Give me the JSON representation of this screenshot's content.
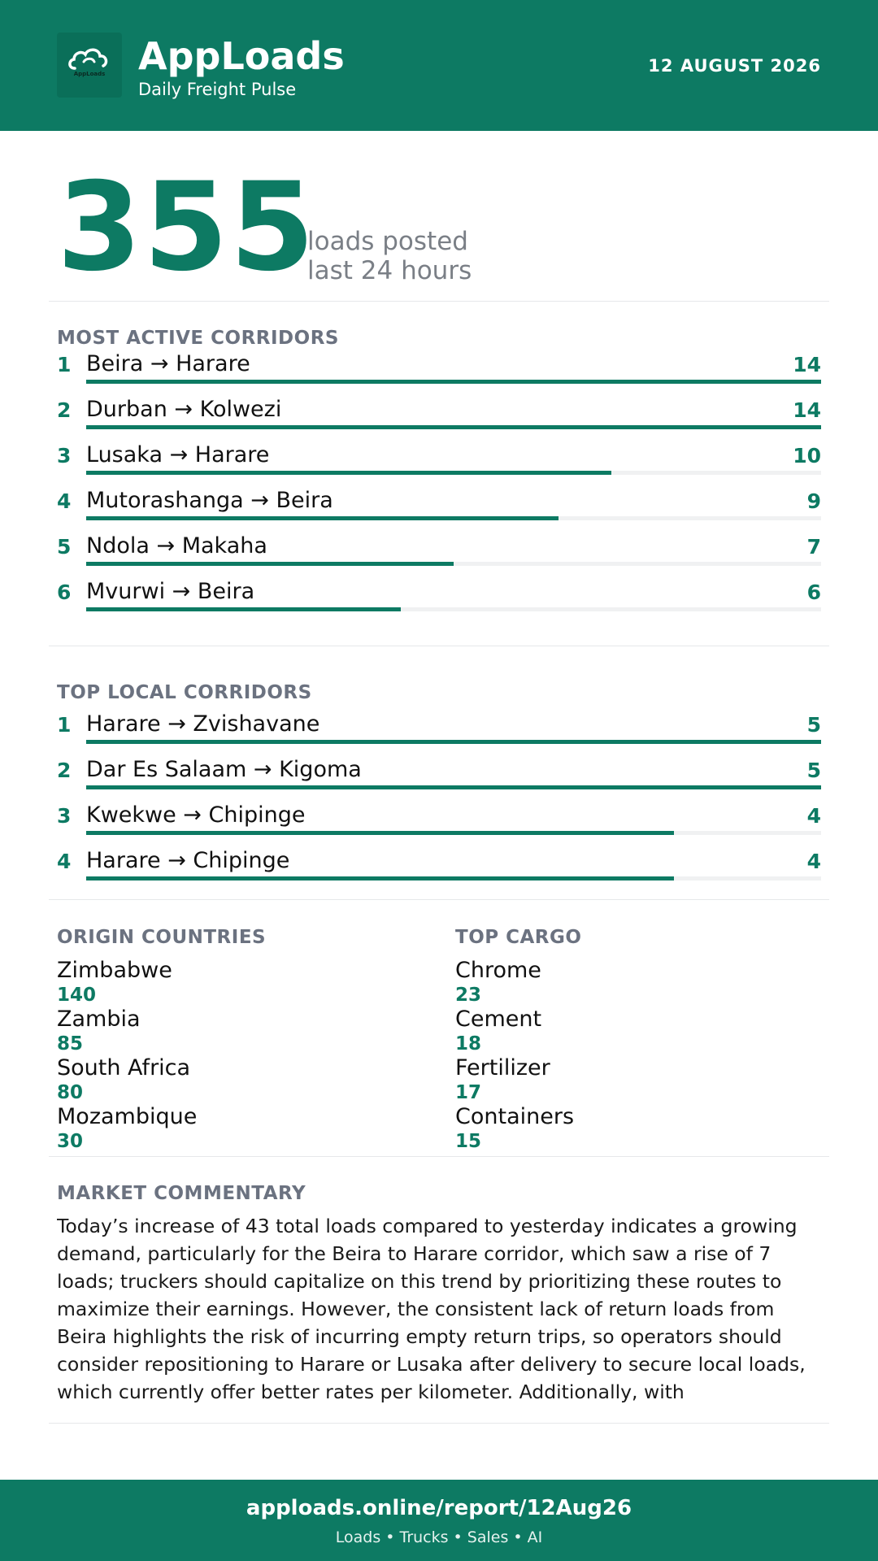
{
  "header": {
    "brand_name": "AppLoads",
    "tagline": "Daily Freight Pulse",
    "date": "12 AUGUST 2026",
    "logo_icon": "cloud-icon",
    "logo_text": "AppLoads"
  },
  "hero": {
    "value": "355",
    "line1": "loads posted",
    "line2": "last 24 hours"
  },
  "most_active": {
    "title": "MOST ACTIVE CORRIDORS",
    "max": 14,
    "items": [
      {
        "rank": "1",
        "route": "Beira → Harare",
        "count": 14
      },
      {
        "rank": "2",
        "route": "Durban → Kolwezi",
        "count": 14
      },
      {
        "rank": "3",
        "route": "Lusaka → Harare",
        "count": 10
      },
      {
        "rank": "4",
        "route": "Mutorashanga → Beira",
        "count": 9
      },
      {
        "rank": "5",
        "route": "Ndola → Makaha",
        "count": 7
      },
      {
        "rank": "6",
        "route": "Mvurwi → Beira",
        "count": 6
      }
    ]
  },
  "top_local": {
    "title": "TOP LOCAL CORRIDORS",
    "max": 5,
    "items": [
      {
        "rank": "1",
        "route": "Harare → Zvishavane",
        "count": 5
      },
      {
        "rank": "2",
        "route": "Dar Es Salaam → Kigoma",
        "count": 5
      },
      {
        "rank": "3",
        "route": "Kwekwe → Chipinge",
        "count": 4
      },
      {
        "rank": "4",
        "route": "Harare → Chipinge",
        "count": 4
      }
    ]
  },
  "origin_countries": {
    "title": "ORIGIN COUNTRIES",
    "items": [
      {
        "name": "Zimbabwe",
        "value": "140"
      },
      {
        "name": "Zambia",
        "value": "85"
      },
      {
        "name": "South Africa",
        "value": "80"
      },
      {
        "name": "Mozambique",
        "value": "30"
      }
    ]
  },
  "top_cargo": {
    "title": "TOP CARGO",
    "items": [
      {
        "name": "Chrome",
        "value": "23"
      },
      {
        "name": "Cement",
        "value": "18"
      },
      {
        "name": "Fertilizer",
        "value": "17"
      },
      {
        "name": "Containers",
        "value": "15"
      }
    ]
  },
  "commentary": {
    "title": "MARKET COMMENTARY",
    "text": "Today’s increase of 43 total loads compared to yesterday indicates a growing demand, particularly for the Beira to Harare corridor, which saw a rise of 7 loads; truckers should capitalize on this trend by prioritizing these routes to maximize their earnings. However, the consistent lack of return loads from Beira highlights the risk of incurring empty return trips, so operators should consider repositioning to Harare or Lusaka after delivery to secure local loads, which currently offer better rates per kilometer. Additionally, with"
  },
  "footer": {
    "url": "apploads.online/report/12Aug26",
    "tagline": "Loads • Trucks • Sales • AI"
  },
  "colors": {
    "brand": "#0d7a63",
    "muted": "#6b7280",
    "track": "#f0f1f2"
  }
}
